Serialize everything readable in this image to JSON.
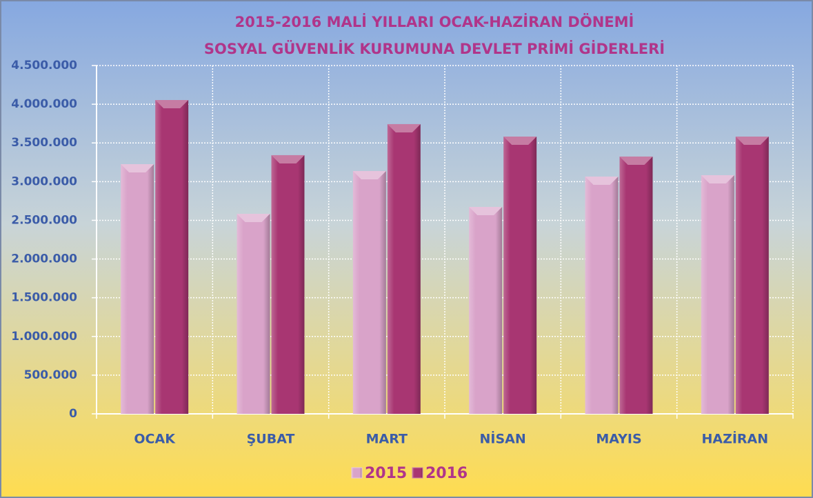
{
  "chart_data": {
    "type": "bar",
    "title": [
      "2015-2016  MALİ YILLARI OCAK-HAZİRAN  DÖNEMİ",
      "SOSYAL GÜVENLİK  KURUMUNA  DEVLET PRİMİ  GİDERLERİ"
    ],
    "categories": [
      "OCAK",
      "ŞUBAT",
      "MART",
      "NİSAN",
      "MAYIS",
      "HAZİRAN"
    ],
    "series": [
      {
        "name": "2015",
        "color": "#d9a3c9",
        "values": [
          3226000,
          2584000,
          3137000,
          2673000,
          3065000,
          3083000
        ]
      },
      {
        "name": "2016",
        "color": "#a83672",
        "values": [
          4054000,
          3342000,
          3743000,
          3582000,
          3324000,
          3582000
        ]
      }
    ],
    "ylim": [
      0,
      4500000
    ],
    "yticks": [
      0,
      {
        "value": 500000,
        "label": "500.000"
      },
      {
        "value": 1000000,
        "label": "1.000.000"
      },
      {
        "value": 1500000,
        "label": "1.500.000"
      },
      {
        "value": 2000000,
        "label": "2.000.000"
      },
      {
        "value": 2500000,
        "label": "2.500.000"
      },
      {
        "value": 3000000,
        "label": "3.000.000"
      },
      {
        "value": 3500000,
        "label": "3.500.000"
      },
      {
        "value": 4000000,
        "label": "4.000.000"
      },
      {
        "value": 4500000,
        "label": "4.500.000"
      }
    ],
    "grid": true,
    "legend": "bottom"
  }
}
